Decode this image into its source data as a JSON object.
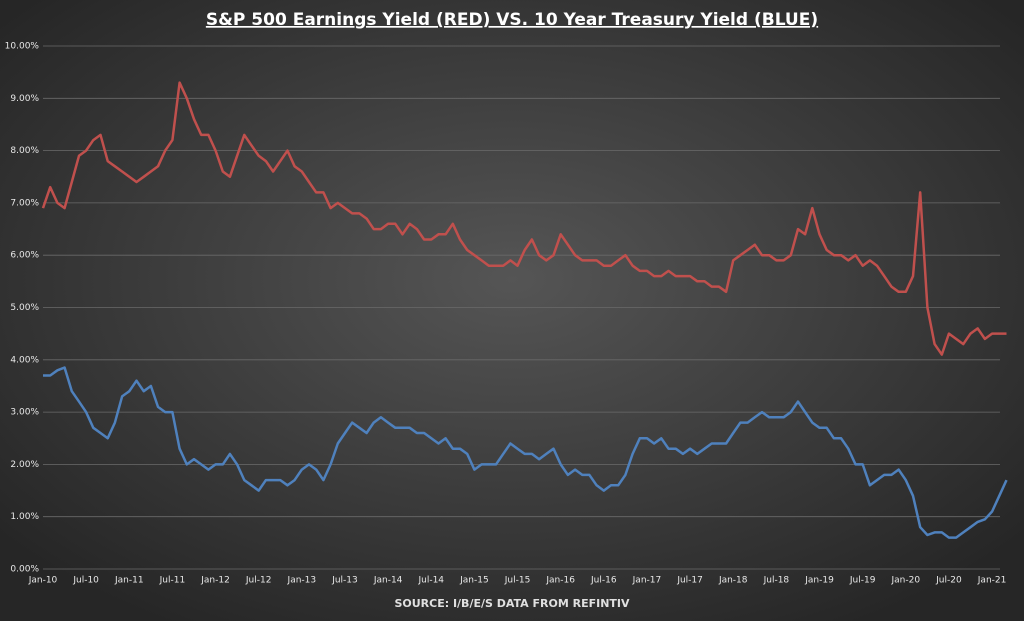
{
  "chart_data": {
    "type": "line",
    "title": "S&P 500 Earnings Yield (RED) VS. 10 Year Treasury Yield (BLUE)",
    "source": "SOURCE: I/B/E/S DATA FROM REFINTIV",
    "categories": [
      "Jan-10",
      null,
      null,
      null,
      null,
      null,
      "Jul-10",
      null,
      null,
      null,
      null,
      null,
      "Jan-11",
      null,
      null,
      null,
      null,
      null,
      "Jul-11",
      null,
      null,
      null,
      null,
      null,
      "Jan-12",
      null,
      null,
      null,
      null,
      null,
      "Jul-12",
      null,
      null,
      null,
      null,
      null,
      "Jan-13",
      null,
      null,
      null,
      null,
      null,
      "Jul-13",
      null,
      null,
      null,
      null,
      null,
      "Jan-14",
      null,
      null,
      null,
      null,
      null,
      "Jul-14",
      null,
      null,
      null,
      null,
      null,
      "Jan-15",
      null,
      null,
      null,
      null,
      null,
      "Jul-15",
      null,
      null,
      null,
      null,
      null,
      "Jan-16",
      null,
      null,
      null,
      null,
      null,
      "Jul-16",
      null,
      null,
      null,
      null,
      null,
      "Jan-17",
      null,
      null,
      null,
      null,
      null,
      "Jul-17",
      null,
      null,
      null,
      null,
      null,
      "Jan-18",
      null,
      null,
      null,
      null,
      null,
      "Jul-18",
      null,
      null,
      null,
      null,
      null,
      "Jan-19",
      null,
      null,
      null,
      null,
      null,
      "Jul-19",
      null,
      null,
      null,
      null,
      null,
      "Jan-20",
      null,
      null,
      null,
      null,
      null,
      "Jul-20",
      null,
      null,
      null,
      null,
      null,
      "Jan-21",
      null,
      null
    ],
    "series": [
      {
        "color": "#c0504d",
        "values": [
          6.9,
          7.3,
          7.0,
          6.9,
          7.4,
          7.9,
          8.0,
          8.2,
          8.3,
          7.8,
          7.7,
          7.6,
          7.5,
          7.4,
          7.5,
          7.6,
          7.7,
          8.0,
          8.2,
          9.3,
          9.0,
          8.6,
          8.3,
          8.3,
          8.0,
          7.6,
          7.5,
          7.9,
          8.3,
          8.1,
          7.9,
          7.8,
          7.6,
          7.8,
          8.0,
          7.7,
          7.6,
          7.4,
          7.2,
          7.2,
          6.9,
          7.0,
          6.9,
          6.8,
          6.8,
          6.7,
          6.5,
          6.5,
          6.6,
          6.6,
          6.4,
          6.6,
          6.5,
          6.3,
          6.3,
          6.4,
          6.4,
          6.6,
          6.3,
          6.1,
          6.0,
          5.9,
          5.8,
          5.8,
          5.8,
          5.9,
          5.8,
          6.1,
          6.3,
          6.0,
          5.9,
          6.0,
          6.4,
          6.2,
          6.0,
          5.9,
          5.9,
          5.9,
          5.8,
          5.8,
          5.9,
          6.0,
          5.8,
          5.7,
          5.7,
          5.6,
          5.6,
          5.7,
          5.6,
          5.6,
          5.6,
          5.5,
          5.5,
          5.4,
          5.4,
          5.3,
          5.9,
          6.0,
          6.1,
          6.2,
          6.0,
          6.0,
          5.9,
          5.9,
          6.0,
          6.5,
          6.4,
          6.9,
          6.4,
          6.1,
          6.0,
          6.0,
          5.9,
          6.0,
          5.8,
          5.9,
          5.8,
          5.6,
          5.4,
          5.3,
          5.3,
          5.6,
          7.2,
          5.0,
          4.3,
          4.1,
          4.5,
          4.4,
          4.3,
          4.5,
          4.6,
          4.4,
          4.5,
          4.5,
          4.5
        ]
      },
      {
        "color": "#4f81bd",
        "values": [
          3.7,
          3.7,
          3.8,
          3.85,
          3.4,
          3.2,
          3.0,
          2.7,
          2.6,
          2.5,
          2.8,
          3.3,
          3.4,
          3.6,
          3.4,
          3.5,
          3.1,
          3.0,
          3.0,
          2.3,
          2.0,
          2.1,
          2.0,
          1.9,
          2.0,
          2.0,
          2.2,
          2.0,
          1.7,
          1.6,
          1.5,
          1.7,
          1.7,
          1.7,
          1.6,
          1.7,
          1.9,
          2.0,
          1.9,
          1.7,
          2.0,
          2.4,
          2.6,
          2.8,
          2.7,
          2.6,
          2.8,
          2.9,
          2.8,
          2.7,
          2.7,
          2.7,
          2.6,
          2.6,
          2.5,
          2.4,
          2.5,
          2.3,
          2.3,
          2.2,
          1.9,
          2.0,
          2.0,
          2.0,
          2.2,
          2.4,
          2.3,
          2.2,
          2.2,
          2.1,
          2.2,
          2.3,
          2.0,
          1.8,
          1.9,
          1.8,
          1.8,
          1.6,
          1.5,
          1.6,
          1.6,
          1.8,
          2.2,
          2.5,
          2.5,
          2.4,
          2.5,
          2.3,
          2.3,
          2.2,
          2.3,
          2.2,
          2.3,
          2.4,
          2.4,
          2.4,
          2.6,
          2.8,
          2.8,
          2.9,
          3.0,
          2.9,
          2.9,
          2.9,
          3.0,
          3.2,
          3.0,
          2.8,
          2.7,
          2.7,
          2.5,
          2.5,
          2.3,
          2.0,
          2.0,
          1.6,
          1.7,
          1.8,
          1.8,
          1.9,
          1.7,
          1.4,
          0.8,
          0.65,
          0.7,
          0.7,
          0.6,
          0.6,
          0.7,
          0.8,
          0.9,
          0.95,
          1.1,
          1.4,
          1.7
        ]
      }
    ],
    "ylim": [
      0,
      10
    ],
    "yticks": [
      {
        "value": 0,
        "label": "0.00%"
      },
      {
        "value": 1,
        "label": "1.00%"
      },
      {
        "value": 2,
        "label": "2.00%"
      },
      {
        "value": 3,
        "label": "3.00%"
      },
      {
        "value": 4,
        "label": "4.00%"
      },
      {
        "value": 5,
        "label": "5.00%"
      },
      {
        "value": 6,
        "label": "6.00%"
      },
      {
        "value": 7,
        "label": "7.00%"
      },
      {
        "value": 8,
        "label": "8.00%"
      },
      {
        "value": 9,
        "label": "9.00%"
      },
      {
        "value": 10,
        "label": "10.00%"
      }
    ],
    "grid": true
  }
}
